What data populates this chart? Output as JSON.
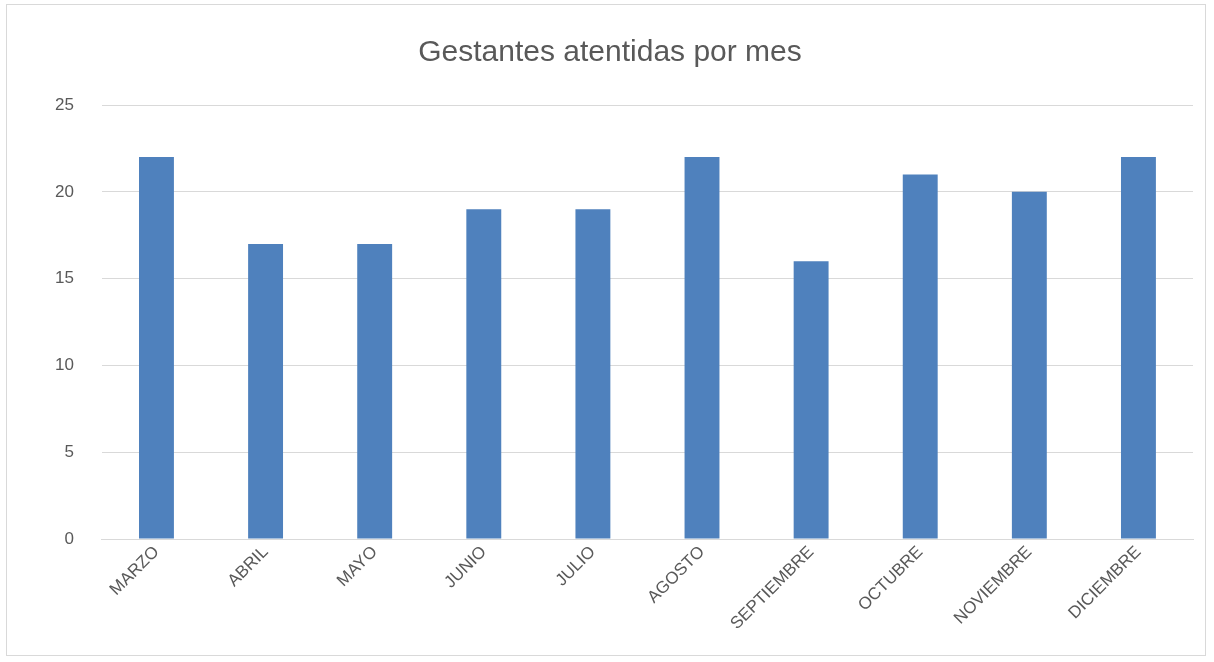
{
  "chart_data": {
    "type": "bar",
    "title": "Gestantes atentidas por mes",
    "categories": [
      "MARZO",
      "ABRIL",
      "MAYO",
      "JUNIO",
      "JULIO",
      "AGOSTO",
      "SEPTIEMBRE",
      "OCTUBRE",
      "NOVIEMBRE",
      "DICIEMBRE"
    ],
    "values": [
      22,
      17,
      17,
      19,
      19,
      22,
      16,
      21,
      20,
      22
    ],
    "color": "#4f81bd",
    "ylim": [
      0,
      25
    ],
    "yticks": [
      0,
      5,
      10,
      15,
      20,
      25
    ],
    "grid": "y",
    "legend": false
  }
}
